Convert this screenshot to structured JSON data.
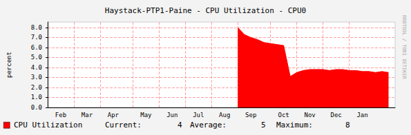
{
  "chart_data": {
    "type": "area",
    "title": "Haystack-PTP1-Paine - CPU Utilization - CPU0",
    "y_label": "percent",
    "categories": [
      null,
      null,
      "Feb",
      null,
      null,
      null,
      "Mar",
      null,
      null,
      null,
      "Apr",
      null,
      null,
      null,
      null,
      "May",
      null,
      null,
      null,
      "Jun",
      null,
      null,
      null,
      "Jul",
      null,
      null,
      null,
      "Aug",
      null,
      null,
      null,
      "Sep",
      null,
      null,
      null,
      null,
      "Oct",
      null,
      null,
      null,
      "Nov",
      null,
      null,
      null,
      "Dec",
      null,
      null,
      null,
      "Jan",
      null,
      null,
      null,
      null,
      null
    ],
    "series": [
      {
        "name": "CPU Utilization",
        "color": "#ff0000",
        "values": [
          null,
          null,
          null,
          null,
          null,
          null,
          null,
          null,
          null,
          null,
          null,
          null,
          null,
          null,
          null,
          null,
          null,
          null,
          null,
          null,
          null,
          null,
          null,
          null,
          null,
          null,
          null,
          null,
          null,
          8.0,
          7.3,
          7.0,
          6.8,
          6.5,
          6.4,
          6.3,
          6.2,
          3.1,
          3.5,
          3.7,
          3.8,
          3.8,
          3.8,
          3.7,
          3.8,
          3.8,
          3.7,
          3.7,
          3.6,
          3.6,
          3.5,
          3.6,
          3.5,
          null
        ]
      }
    ],
    "ylim": [
      0,
      8.55
    ],
    "yticks": [
      {
        "value": 0,
        "label": "0.0"
      },
      {
        "value": 1,
        "label": "1.0"
      },
      {
        "value": 2,
        "label": "2.0"
      },
      {
        "value": 3,
        "label": "3.0"
      },
      {
        "value": 4,
        "label": "4.0"
      },
      {
        "value": 5,
        "label": "5.0"
      },
      {
        "value": 6,
        "label": "6.0"
      },
      {
        "value": 7,
        "label": "7.0"
      },
      {
        "value": 8,
        "label": "8.0"
      }
    ],
    "grid": true,
    "legend": "bottom-left",
    "summary": [
      {
        "label": "Current:",
        "value": 4
      },
      {
        "label": "Average:",
        "value": 5
      },
      {
        "label": "Maximum:",
        "value": 8
      }
    ],
    "watermark": "RRDTOOL / TOBI OETIKER"
  }
}
